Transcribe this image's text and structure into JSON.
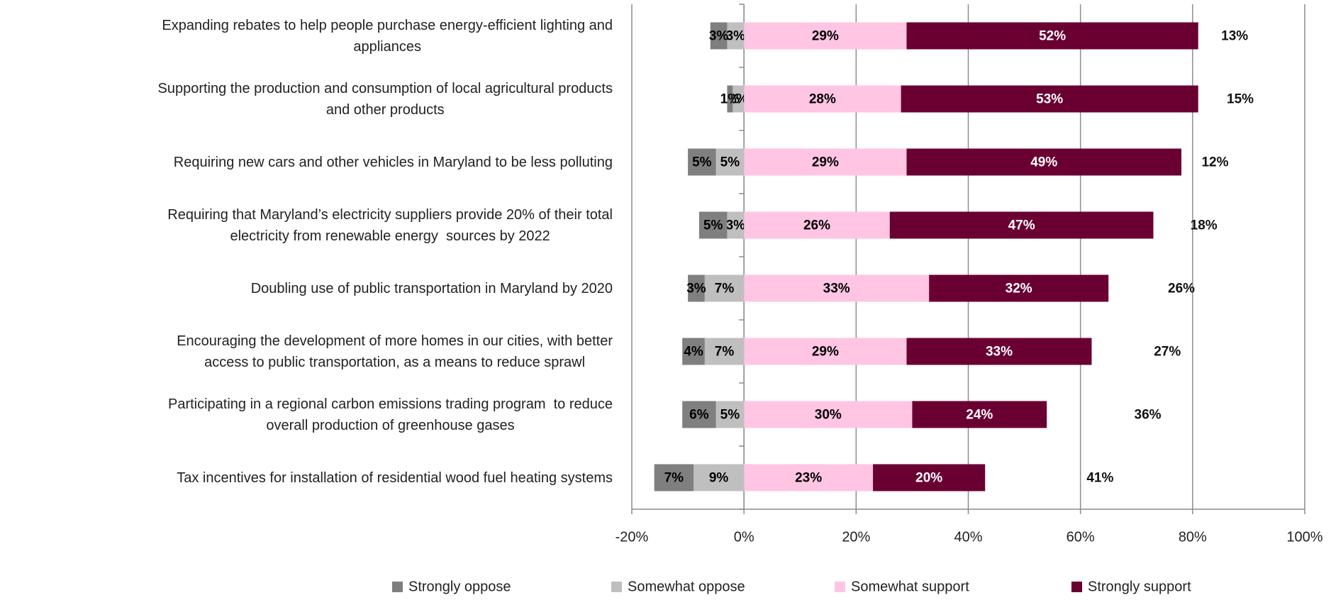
{
  "chart_data": {
    "type": "diverging_stacked_bar",
    "orientation": "horizontal",
    "categories": [
      "Expanding rebates to help people purchase energy-efficient lighting and\nappliances",
      "Supporting the production and consumption of local agricultural products\nand other products",
      "Requiring new cars and other vehicles in Maryland to be less polluting",
      "Requiring that Maryland’s electricity suppliers provide 20% of their total\nelectricity from renewable energy  sources by 2022",
      "Doubling use of public transportation in Maryland by 2020",
      "Encouraging the development of more homes in our cities, with better\naccess to public transportation, as a means to reduce sprawl",
      "Participating in a regional carbon emissions trading program  to reduce\noverall production of greenhouse gases",
      "Tax incentives for installation of residential wood fuel heating systems"
    ],
    "series": [
      {
        "name": "Strongly oppose",
        "color": "#7f7f7f",
        "label_color": "#000000",
        "values": [
          -3,
          -1,
          -5,
          -5,
          -3,
          -4,
          -6,
          -7
        ],
        "value_labels": [
          "3%",
          "1%",
          "5%",
          "5%",
          "3%",
          "4%",
          "6%",
          "7%"
        ]
      },
      {
        "name": "Somewhat oppose",
        "color": "#bfbfbf",
        "label_color": "#000000",
        "values": [
          -3,
          -2,
          -5,
          -3,
          -7,
          -7,
          -5,
          -9
        ],
        "value_labels": [
          "3%",
          "2%",
          "5%",
          "3%",
          "7%",
          "7%",
          "5%",
          "9%"
        ]
      },
      {
        "name": "Somewhat support",
        "color": "#ffc5e3",
        "label_color": "#000000",
        "values": [
          29,
          28,
          29,
          26,
          33,
          29,
          30,
          23
        ],
        "value_labels": [
          "29%",
          "28%",
          "29%",
          "26%",
          "33%",
          "29%",
          "30%",
          "23%"
        ]
      },
      {
        "name": "Strongly support",
        "color": "#6a0032",
        "label_color": "#ffffff",
        "values": [
          52,
          53,
          49,
          47,
          32,
          33,
          24,
          20
        ],
        "value_labels": [
          "52%",
          "53%",
          "49%",
          "47%",
          "32%",
          "33%",
          "24%",
          "20%"
        ]
      }
    ],
    "remainder": [
      13,
      15,
      12,
      18,
      26,
      27,
      36,
      41
    ],
    "remainder_labels": [
      "13%",
      "15%",
      "12%",
      "18%",
      "26%",
      "27%",
      "36%",
      "41%"
    ],
    "xlim": [
      -20,
      100
    ],
    "xticks": [
      {
        "value": -20,
        "label": "-20%"
      },
      {
        "value": 0,
        "label": "0%"
      },
      {
        "value": 20,
        "label": "20%"
      },
      {
        "value": 40,
        "label": "40%"
      },
      {
        "value": 60,
        "label": "60%"
      },
      {
        "value": 80,
        "label": "80%"
      },
      {
        "value": 100,
        "label": "100%"
      }
    ],
    "grid": true,
    "legend": "bottom"
  }
}
